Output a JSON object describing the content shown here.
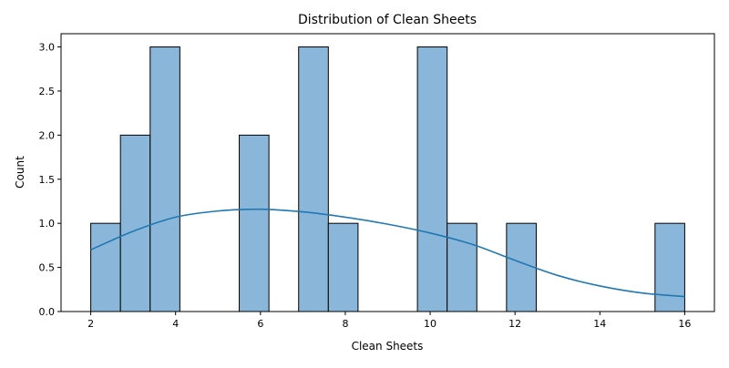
{
  "chart_data": {
    "type": "bar",
    "title": "Distribution of Clean Sheets",
    "xlabel": "Clean Sheets",
    "ylabel": "Count",
    "xlim": [
      1.3,
      16.7
    ],
    "ylim": [
      0,
      3.15
    ],
    "x_ticks": [
      2,
      4,
      6,
      8,
      10,
      12,
      14,
      16
    ],
    "x_tick_labels": [
      "2",
      "4",
      "6",
      "8",
      "10",
      "12",
      "14",
      "16"
    ],
    "y_ticks": [
      0,
      0.5,
      1,
      1.5,
      2,
      2.5,
      3
    ],
    "y_tick_labels": [
      "0.0",
      "0.5",
      "1.0",
      "1.5",
      "2.0",
      "2.5",
      "3.0"
    ],
    "bins": [
      {
        "start": 2.0,
        "end": 2.7,
        "count": 1
      },
      {
        "start": 2.7,
        "end": 3.4,
        "count": 2
      },
      {
        "start": 3.4,
        "end": 4.1,
        "count": 3
      },
      {
        "start": 5.5,
        "end": 6.2,
        "count": 2
      },
      {
        "start": 6.9,
        "end": 7.6,
        "count": 3
      },
      {
        "start": 7.6,
        "end": 8.3,
        "count": 1
      },
      {
        "start": 9.7,
        "end": 10.4,
        "count": 3
      },
      {
        "start": 10.4,
        "end": 11.1,
        "count": 1
      },
      {
        "start": 11.8,
        "end": 12.5,
        "count": 1
      },
      {
        "start": 15.3,
        "end": 16.0,
        "count": 1
      }
    ],
    "kde": {
      "x": [
        2,
        3,
        4,
        5,
        6,
        7,
        8,
        9,
        10,
        11,
        12,
        13,
        14,
        15,
        16
      ],
      "y": [
        0.7,
        0.91,
        1.07,
        1.14,
        1.16,
        1.13,
        1.07,
        0.99,
        0.89,
        0.76,
        0.58,
        0.41,
        0.29,
        0.21,
        0.17
      ]
    },
    "grid": false,
    "colors": {
      "bar_fill": "#8ab7d9",
      "bar_edge": "#000000",
      "kde_line": "#1f77b4"
    }
  }
}
